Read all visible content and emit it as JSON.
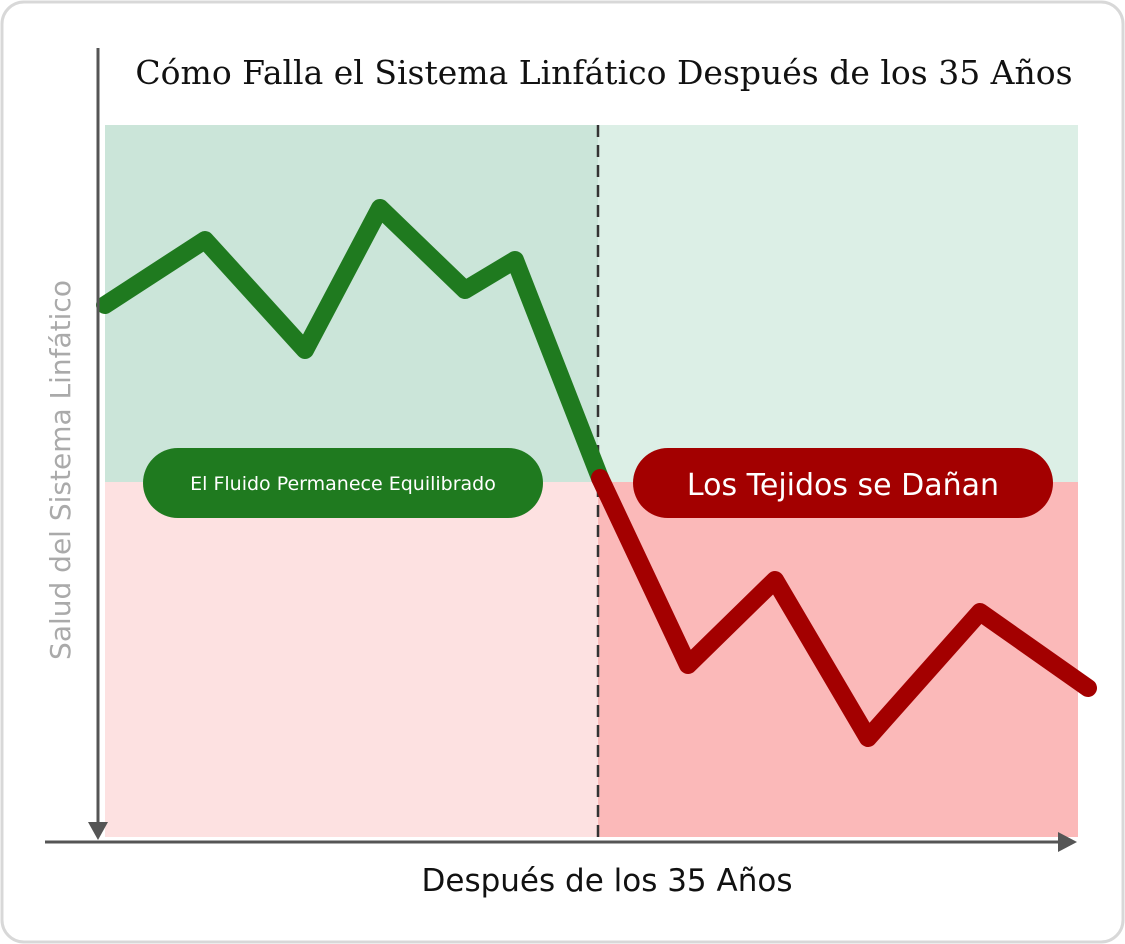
{
  "title": "Cómo Falla el Sistema Linfático Después de los 35 Años",
  "y_axis_label": "Salud del Sistema Linfático",
  "x_axis_label": "Después de los 35 Años",
  "zones": {
    "left_label": "El Fluido Permanece Equilibrado",
    "right_label": "Los Tejidos se Dañan"
  }
}
